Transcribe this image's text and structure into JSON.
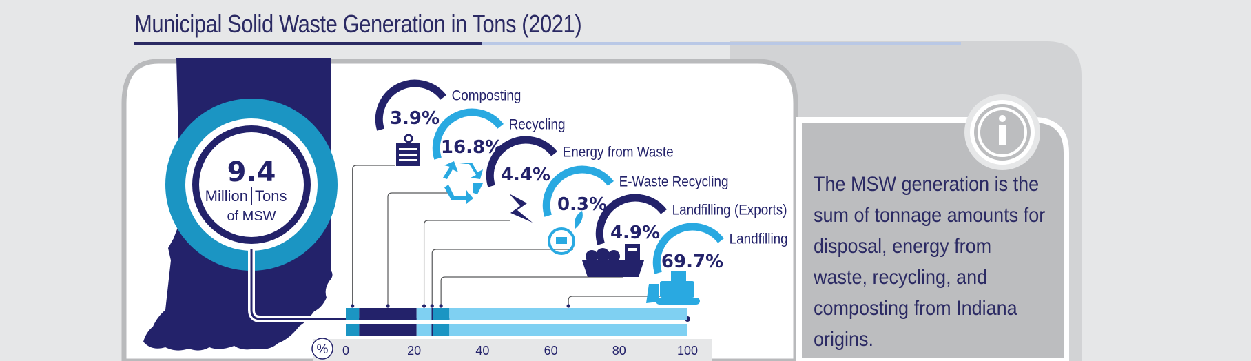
{
  "title": "Municipal Solid Waste Generation in Tons (2021)",
  "total": {
    "value": "9.4",
    "unit_line1_a": "Million",
    "unit_line1_b": "Tons",
    "unit_line2": "of MSW"
  },
  "categories": [
    {
      "label": "Composting",
      "percent": "3.9%",
      "value": 3.9,
      "icon": "clipboard-bin-icon"
    },
    {
      "label": "Recycling",
      "percent": "16.8%",
      "value": 16.8,
      "icon": "recycle-icon"
    },
    {
      "label": "Energy from Waste",
      "percent": "4.4%",
      "value": 4.4,
      "icon": "lightning-bolt-icon"
    },
    {
      "label": "E-Waste Recycling",
      "percent": "0.3%",
      "value": 0.3,
      "icon": "plug-leaf-icon"
    },
    {
      "label": "Landfilling (Exports)",
      "percent": "4.9%",
      "value": 4.9,
      "icon": "cargo-ship-icon"
    },
    {
      "label": "Landfilling",
      "percent": "69.7%",
      "value": 69.7,
      "icon": "bulldozer-icon"
    }
  ],
  "axis": {
    "unit_symbol": "%",
    "ticks": [
      "0",
      "20",
      "40",
      "60",
      "80",
      "100"
    ]
  },
  "info": {
    "icon": "info-icon",
    "text": "The MSW generation is the sum of tonnage amounts for disposal, energy from waste, recycling, and composting from Indiana origins."
  },
  "colors": {
    "navy": "#23226a",
    "teal": "#1b95c3",
    "sky": "#29a9e1",
    "light_blue": "#7fd0f2",
    "grey_panel": "#bcbdbf",
    "background": "#e6e7e8"
  }
}
